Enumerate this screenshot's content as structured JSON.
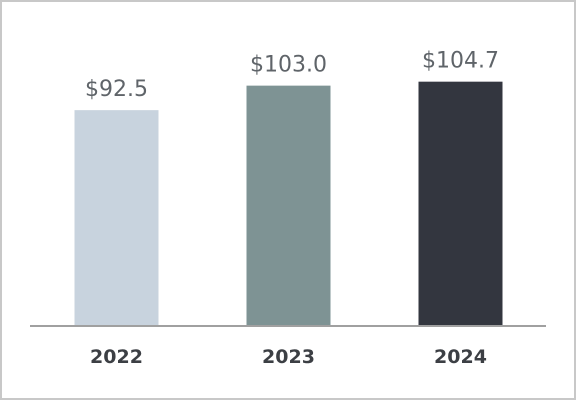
{
  "chart_data": {
    "type": "bar",
    "categories": [
      "2022",
      "2023",
      "2024"
    ],
    "values": [
      92.5,
      103.0,
      104.7
    ],
    "value_labels": [
      "$92.5",
      "$103.0",
      "$104.7"
    ],
    "colors": [
      "#c8d3de",
      "#7e9394",
      "#33363f"
    ],
    "axis_color": "#a0a0a0",
    "title": "",
    "xlabel": "",
    "ylabel": "",
    "ylim": [
      0,
      115
    ],
    "grid": false,
    "legend": "none"
  }
}
